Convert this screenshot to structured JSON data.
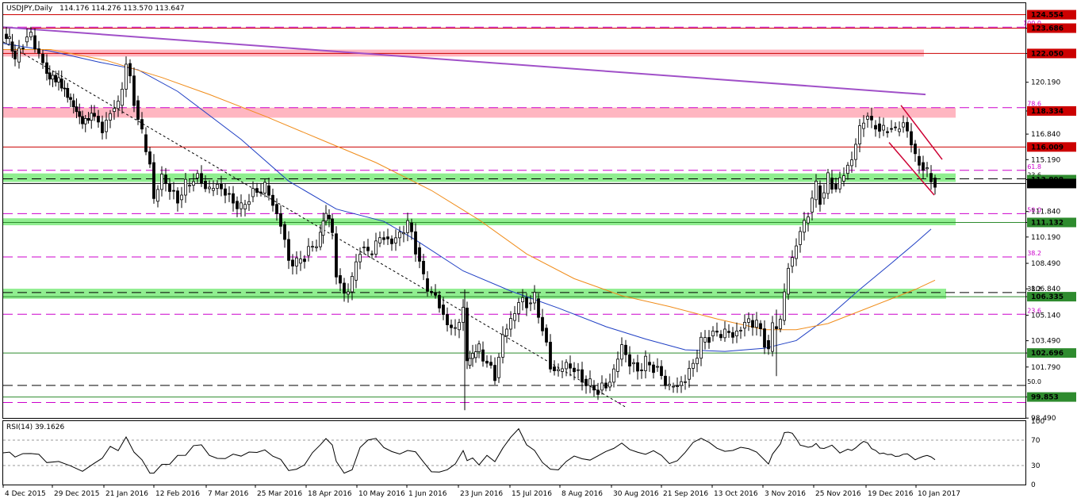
{
  "chart_data": {
    "type": "candlestick",
    "symbol_title": "USDJPY,Daily",
    "ohlc_text": "114.176 114.276 113.570 113.647",
    "price_axis": {
      "range": [
        98.5,
        125.3
      ],
      "ticks": [
        "123.686",
        "122.050",
        "120.190",
        "118.334",
        "116.840",
        "115.190",
        "113.898",
        "111.840",
        "111.132",
        "110.190",
        "108.490",
        "106.840",
        "106.335",
        "105.140",
        "103.490",
        "102.696",
        "101.790",
        "99.853",
        "98.490"
      ]
    },
    "price_tags": [
      {
        "value": 124.554,
        "text": "124.554",
        "color": "#cc0000"
      },
      {
        "value": 123.686,
        "text": "123.686",
        "color": "#cc0000"
      },
      {
        "value": 122.05,
        "text": "122.050",
        "color": "#cc0000"
      },
      {
        "value": 118.334,
        "text": "118.334",
        "color": "#cc0000"
      },
      {
        "value": 116.009,
        "text": "116.009",
        "color": "#cc0000"
      },
      {
        "value": 113.898,
        "text": "113.898",
        "color": "#2e8b2e"
      },
      {
        "value": 113.647,
        "text": "113.647",
        "color": "#000000"
      },
      {
        "value": 111.132,
        "text": "111.132",
        "color": "#2e8b2e"
      },
      {
        "value": 106.335,
        "text": "106.335",
        "color": "#2e8b2e"
      },
      {
        "value": 102.696,
        "text": "102.696",
        "color": "#2e8b2e"
      },
      {
        "value": 99.853,
        "text": "99.853",
        "color": "#2e8b2e"
      }
    ],
    "fib_levels": [
      {
        "label": "100.0",
        "value": 123.75,
        "color": "#cc00cc"
      },
      {
        "label": "78.6",
        "value": 118.55,
        "color": "#cc00cc"
      },
      {
        "label": "61.8",
        "value": 114.5,
        "color": "#cc00cc"
      },
      {
        "label": "23.6",
        "value": 113.95,
        "color": "#000000"
      },
      {
        "label": "50.0",
        "value": 111.7,
        "color": "#cc00cc"
      },
      {
        "label": "38.2",
        "value": 108.9,
        "color": "#cc00cc"
      },
      {
        "label": "38.2",
        "value": 106.6,
        "color": "#000000"
      },
      {
        "label": "23.6",
        "value": 105.2,
        "color": "#cc00cc"
      },
      {
        "label": "50.0",
        "value": 100.6,
        "color": "#000000"
      },
      {
        "label": "0.0",
        "value": 99.5,
        "color": "#cc00cc"
      }
    ],
    "x_ticks": [
      "4 Dec 2015",
      "29 Dec 2015",
      "21 Jan 2016",
      "12 Feb 2016",
      "7 Mar 2016",
      "25 Mar 2016",
      "18 Apr 2016",
      "10 May 2016",
      "1 Jun 2016",
      "23 Jun 2016",
      "15 Jul 2016",
      "8 Aug 2016",
      "30 Aug 2016",
      "21 Sep 2016",
      "13 Oct 2016",
      "3 Nov 2016",
      "25 Nov 2016",
      "19 Dec 2016",
      "10 Jan 2017"
    ],
    "price_path": [
      [
        0,
        123.3
      ],
      [
        8,
        122.8
      ],
      [
        15,
        121.5
      ],
      [
        25,
        122.8
      ],
      [
        35,
        123.2
      ],
      [
        45,
        122.0
      ],
      [
        55,
        120.8
      ],
      [
        70,
        120.4
      ],
      [
        85,
        119.0
      ],
      [
        100,
        117.5
      ],
      [
        115,
        118.0
      ],
      [
        125,
        117.0
      ],
      [
        135,
        118.3
      ],
      [
        145,
        118.7
      ],
      [
        155,
        121.4
      ],
      [
        165,
        119.0
      ],
      [
        175,
        116.8
      ],
      [
        185,
        115.0
      ],
      [
        190,
        112.5
      ],
      [
        200,
        114.2
      ],
      [
        210,
        113.2
      ],
      [
        220,
        112.6
      ],
      [
        230,
        113.5
      ],
      [
        240,
        114.0
      ],
      [
        250,
        113.8
      ],
      [
        260,
        113.2
      ],
      [
        270,
        113.6
      ],
      [
        280,
        113.0
      ],
      [
        290,
        112.5
      ],
      [
        300,
        112.0
      ],
      [
        310,
        112.8
      ],
      [
        320,
        113.1
      ],
      [
        330,
        113.5
      ],
      [
        340,
        112.3
      ],
      [
        350,
        111.0
      ],
      [
        360,
        108.7
      ],
      [
        370,
        108.5
      ],
      [
        380,
        109.0
      ],
      [
        390,
        109.5
      ],
      [
        400,
        110.3
      ],
      [
        407,
        111.6
      ],
      [
        415,
        110.4
      ],
      [
        420,
        107.7
      ],
      [
        430,
        106.5
      ],
      [
        440,
        107.4
      ],
      [
        450,
        109.5
      ],
      [
        460,
        109.1
      ],
      [
        470,
        109.8
      ],
      [
        480,
        110.2
      ],
      [
        490,
        109.8
      ],
      [
        500,
        110.4
      ],
      [
        510,
        111.1
      ],
      [
        520,
        109.5
      ],
      [
        530,
        107.5
      ],
      [
        540,
        106.6
      ],
      [
        550,
        105.8
      ],
      [
        560,
        104.5
      ],
      [
        570,
        104.2
      ],
      [
        580,
        105.6
      ],
      [
        585,
        101.9
      ],
      [
        592,
        102.4
      ],
      [
        600,
        102.9
      ],
      [
        610,
        102.1
      ],
      [
        620,
        101.1
      ],
      [
        630,
        103.8
      ],
      [
        640,
        104.8
      ],
      [
        650,
        106.0
      ],
      [
        660,
        105.9
      ],
      [
        670,
        106.2
      ],
      [
        680,
        104.3
      ],
      [
        690,
        101.8
      ],
      [
        700,
        101.5
      ],
      [
        710,
        102.0
      ],
      [
        720,
        101.6
      ],
      [
        730,
        101.0
      ],
      [
        740,
        100.6
      ],
      [
        750,
        100.3
      ],
      [
        760,
        100.5
      ],
      [
        770,
        101.5
      ],
      [
        780,
        103.2
      ],
      [
        790,
        102.0
      ],
      [
        800,
        101.6
      ],
      [
        810,
        102.1
      ],
      [
        820,
        101.8
      ],
      [
        830,
        101.2
      ],
      [
        840,
        100.5
      ],
      [
        850,
        100.6
      ],
      [
        860,
        101.0
      ],
      [
        870,
        102.0
      ],
      [
        880,
        103.4
      ],
      [
        890,
        103.8
      ],
      [
        900,
        103.9
      ],
      [
        910,
        104.1
      ],
      [
        920,
        103.8
      ],
      [
        930,
        104.3
      ],
      [
        940,
        104.8
      ],
      [
        950,
        104.6
      ],
      [
        960,
        103.5
      ],
      [
        965,
        102.8
      ],
      [
        970,
        104.4
      ],
      [
        980,
        104.8
      ],
      [
        985,
        106.5
      ],
      [
        990,
        108.3
      ],
      [
        995,
        108.8
      ],
      [
        1000,
        109.7
      ],
      [
        1005,
        110.5
      ],
      [
        1010,
        111.1
      ],
      [
        1015,
        111.8
      ],
      [
        1020,
        112.6
      ],
      [
        1025,
        113.5
      ],
      [
        1030,
        112.7
      ],
      [
        1035,
        113.0
      ],
      [
        1040,
        114.0
      ],
      [
        1045,
        113.6
      ],
      [
        1050,
        113.3
      ],
      [
        1055,
        113.8
      ],
      [
        1060,
        114.3
      ],
      [
        1065,
        114.8
      ],
      [
        1070,
        115.2
      ],
      [
        1075,
        116.2
      ],
      [
        1080,
        117.2
      ],
      [
        1085,
        117.8
      ],
      [
        1090,
        118.0
      ],
      [
        1095,
        117.4
      ],
      [
        1100,
        117.5
      ],
      [
        1105,
        117.1
      ],
      [
        1110,
        117.0
      ],
      [
        1115,
        117.2
      ],
      [
        1120,
        117.3
      ],
      [
        1125,
        117.0
      ],
      [
        1130,
        117.3
      ],
      [
        1135,
        117.6
      ],
      [
        1140,
        117.0
      ],
      [
        1145,
        116.2
      ],
      [
        1150,
        115.4
      ],
      [
        1155,
        115.0
      ],
      [
        1160,
        114.6
      ],
      [
        1165,
        114.3
      ],
      [
        1170,
        114.0
      ],
      [
        1175,
        113.6
      ]
    ],
    "indicators": [
      "sma-blue",
      "sma-orange",
      "long-trendline-violet",
      "descending-trendline-dashed",
      "falling-channel-red"
    ],
    "rsi": {
      "title": "RSI(14) 39.1626",
      "levels": [
        70,
        30
      ],
      "axis": [
        "100",
        "70",
        "30",
        "0"
      ],
      "last": 39.1626
    },
    "colors": {
      "candle": "#000000",
      "pink_zone": "#ffb6c1",
      "green_zone": "#90ee90",
      "fib": "#cc00cc",
      "sma_blue": "#1f3fc4",
      "sma_orange": "#f08c1a",
      "trendline": "#a050c8"
    }
  }
}
